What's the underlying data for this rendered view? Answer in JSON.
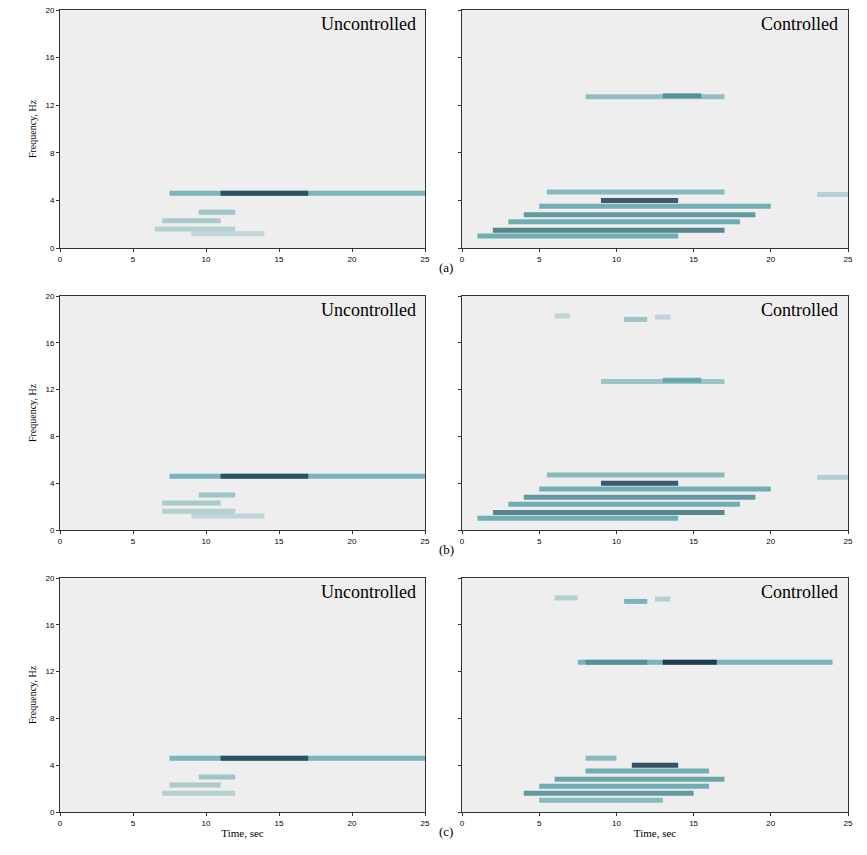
{
  "chart_data": [
    {
      "type": "spectrogram",
      "title": "Uncontrolled",
      "ylabel": "Frequency, Hz",
      "xlim": [
        0,
        25
      ],
      "ylim": [
        0,
        20
      ],
      "xticks": [
        0,
        5,
        10,
        15,
        20,
        25
      ],
      "yticks": [
        0,
        4,
        8,
        12,
        16,
        20
      ],
      "grid": false,
      "annotations": [
        "(a)"
      ],
      "bands": [
        {
          "frequency": 1.2,
          "time": [
            9,
            14
          ],
          "intensity": 0.15
        },
        {
          "frequency": 1.6,
          "time": [
            6.5,
            12
          ],
          "intensity": 0.2
        },
        {
          "frequency": 2.3,
          "time": [
            7,
            11
          ],
          "intensity": 0.25
        },
        {
          "frequency": 3.0,
          "time": [
            9.5,
            12
          ],
          "intensity": 0.3
        },
        {
          "frequency": 4.6,
          "time": [
            7.5,
            25
          ],
          "intensity": 0.45
        },
        {
          "frequency": 4.6,
          "time": [
            11,
            17
          ],
          "intensity": 0.9
        }
      ]
    },
    {
      "type": "spectrogram",
      "title": "Controlled",
      "xlim": [
        0,
        25
      ],
      "ylim": [
        0,
        20
      ],
      "xticks": [
        0,
        5,
        10,
        15,
        20,
        25
      ],
      "yticks": [
        0,
        4,
        8,
        12,
        16,
        20
      ],
      "grid": false,
      "tick_labels": "x",
      "bands": [
        {
          "frequency": 12.7,
          "time": [
            8,
            17
          ],
          "intensity": 0.35
        },
        {
          "frequency": 12.8,
          "time": [
            13,
            15.5
          ],
          "intensity": 0.6
        },
        {
          "frequency": 4.5,
          "time": [
            23,
            25
          ],
          "intensity": 0.2
        },
        {
          "frequency": 4.7,
          "time": [
            5.5,
            17
          ],
          "intensity": 0.4
        },
        {
          "frequency": 3.5,
          "time": [
            5,
            20
          ],
          "intensity": 0.5
        },
        {
          "frequency": 2.8,
          "time": [
            4,
            19
          ],
          "intensity": 0.6
        },
        {
          "frequency": 2.2,
          "time": [
            3,
            18
          ],
          "intensity": 0.5
        },
        {
          "frequency": 1.5,
          "time": [
            2,
            17
          ],
          "intensity": 0.7
        },
        {
          "frequency": 1.0,
          "time": [
            1,
            14
          ],
          "intensity": 0.5
        },
        {
          "frequency": 4.0,
          "time": [
            9,
            14
          ],
          "intensity": 0.9
        }
      ]
    },
    {
      "type": "spectrogram",
      "title": "Uncontrolled",
      "ylabel": "Frequency, Hz",
      "xlim": [
        0,
        25
      ],
      "ylim": [
        0,
        20
      ],
      "xticks": [
        0,
        5,
        10,
        15,
        20,
        25
      ],
      "yticks": [
        0,
        4,
        8,
        12,
        16,
        20
      ],
      "grid": false,
      "annotations": [
        "(b)"
      ],
      "bands": [
        {
          "frequency": 1.2,
          "time": [
            9,
            14
          ],
          "intensity": 0.15
        },
        {
          "frequency": 1.6,
          "time": [
            7,
            12
          ],
          "intensity": 0.2
        },
        {
          "frequency": 2.3,
          "time": [
            7,
            11
          ],
          "intensity": 0.25
        },
        {
          "frequency": 3.0,
          "time": [
            9.5,
            12
          ],
          "intensity": 0.3
        },
        {
          "frequency": 4.6,
          "time": [
            7.5,
            25
          ],
          "intensity": 0.45
        },
        {
          "frequency": 4.6,
          "time": [
            11,
            17
          ],
          "intensity": 0.9
        }
      ]
    },
    {
      "type": "spectrogram",
      "title": "Controlled",
      "xlim": [
        0,
        25
      ],
      "ylim": [
        0,
        20
      ],
      "xticks": [
        0,
        5,
        10,
        15,
        20,
        25
      ],
      "yticks": [
        0,
        4,
        8,
        12,
        16,
        20
      ],
      "grid": false,
      "tick_labels": "x",
      "bands": [
        {
          "frequency": 18.3,
          "time": [
            6,
            7
          ],
          "intensity": 0.15
        },
        {
          "frequency": 18.0,
          "time": [
            10.5,
            12
          ],
          "intensity": 0.3
        },
        {
          "frequency": 18.2,
          "time": [
            12.5,
            13.5
          ],
          "intensity": 0.15
        },
        {
          "frequency": 12.7,
          "time": [
            9,
            17
          ],
          "intensity": 0.3
        },
        {
          "frequency": 12.8,
          "time": [
            13,
            15.5
          ],
          "intensity": 0.5
        },
        {
          "frequency": 4.5,
          "time": [
            23,
            25
          ],
          "intensity": 0.2
        },
        {
          "frequency": 4.7,
          "time": [
            5.5,
            17
          ],
          "intensity": 0.4
        },
        {
          "frequency": 3.5,
          "time": [
            5,
            20
          ],
          "intensity": 0.5
        },
        {
          "frequency": 2.8,
          "time": [
            4,
            19
          ],
          "intensity": 0.6
        },
        {
          "frequency": 2.2,
          "time": [
            3,
            18
          ],
          "intensity": 0.5
        },
        {
          "frequency": 1.5,
          "time": [
            2,
            17
          ],
          "intensity": 0.7
        },
        {
          "frequency": 1.0,
          "time": [
            1,
            14
          ],
          "intensity": 0.5
        },
        {
          "frequency": 4.0,
          "time": [
            9,
            14
          ],
          "intensity": 0.9
        }
      ]
    },
    {
      "type": "spectrogram",
      "title": "Uncontrolled",
      "xlabel": "Time, sec",
      "ylabel": "Frequency, Hz",
      "xlim": [
        0,
        25
      ],
      "ylim": [
        0,
        20
      ],
      "xticks": [
        0,
        5,
        10,
        15,
        20,
        25
      ],
      "yticks": [
        0,
        4,
        8,
        12,
        16,
        20
      ],
      "grid": false,
      "annotations": [
        "(c)"
      ],
      "bands": [
        {
          "frequency": 1.6,
          "time": [
            7,
            12
          ],
          "intensity": 0.2
        },
        {
          "frequency": 2.3,
          "time": [
            7.5,
            11
          ],
          "intensity": 0.25
        },
        {
          "frequency": 3.0,
          "time": [
            9.5,
            12
          ],
          "intensity": 0.3
        },
        {
          "frequency": 4.6,
          "time": [
            7.5,
            25
          ],
          "intensity": 0.45
        },
        {
          "frequency": 4.6,
          "time": [
            11,
            17
          ],
          "intensity": 0.9
        }
      ]
    },
    {
      "type": "spectrogram",
      "title": "Controlled",
      "xlabel": "Time, sec",
      "xlim": [
        0,
        25
      ],
      "ylim": [
        0,
        20
      ],
      "xticks": [
        0,
        5,
        10,
        15,
        20,
        25
      ],
      "yticks": [
        0,
        4,
        8,
        12,
        16,
        20
      ],
      "grid": false,
      "tick_labels": "x",
      "bands": [
        {
          "frequency": 18.3,
          "time": [
            6,
            7.5
          ],
          "intensity": 0.2
        },
        {
          "frequency": 18.0,
          "time": [
            10.5,
            12
          ],
          "intensity": 0.45
        },
        {
          "frequency": 18.2,
          "time": [
            12.5,
            13.5
          ],
          "intensity": 0.2
        },
        {
          "frequency": 12.8,
          "time": [
            7.5,
            24
          ],
          "intensity": 0.45
        },
        {
          "frequency": 12.8,
          "time": [
            8,
            12
          ],
          "intensity": 0.6
        },
        {
          "frequency": 12.8,
          "time": [
            13,
            16.5
          ],
          "intensity": 1.0
        },
        {
          "frequency": 4.6,
          "time": [
            8,
            10
          ],
          "intensity": 0.4
        },
        {
          "frequency": 3.5,
          "time": [
            8,
            16
          ],
          "intensity": 0.5
        },
        {
          "frequency": 2.8,
          "time": [
            6,
            17
          ],
          "intensity": 0.55
        },
        {
          "frequency": 2.2,
          "time": [
            5,
            16
          ],
          "intensity": 0.5
        },
        {
          "frequency": 1.6,
          "time": [
            4,
            15
          ],
          "intensity": 0.6
        },
        {
          "frequency": 1.0,
          "time": [
            5,
            13
          ],
          "intensity": 0.4
        },
        {
          "frequency": 4.0,
          "time": [
            11,
            14
          ],
          "intensity": 0.95
        }
      ]
    }
  ]
}
